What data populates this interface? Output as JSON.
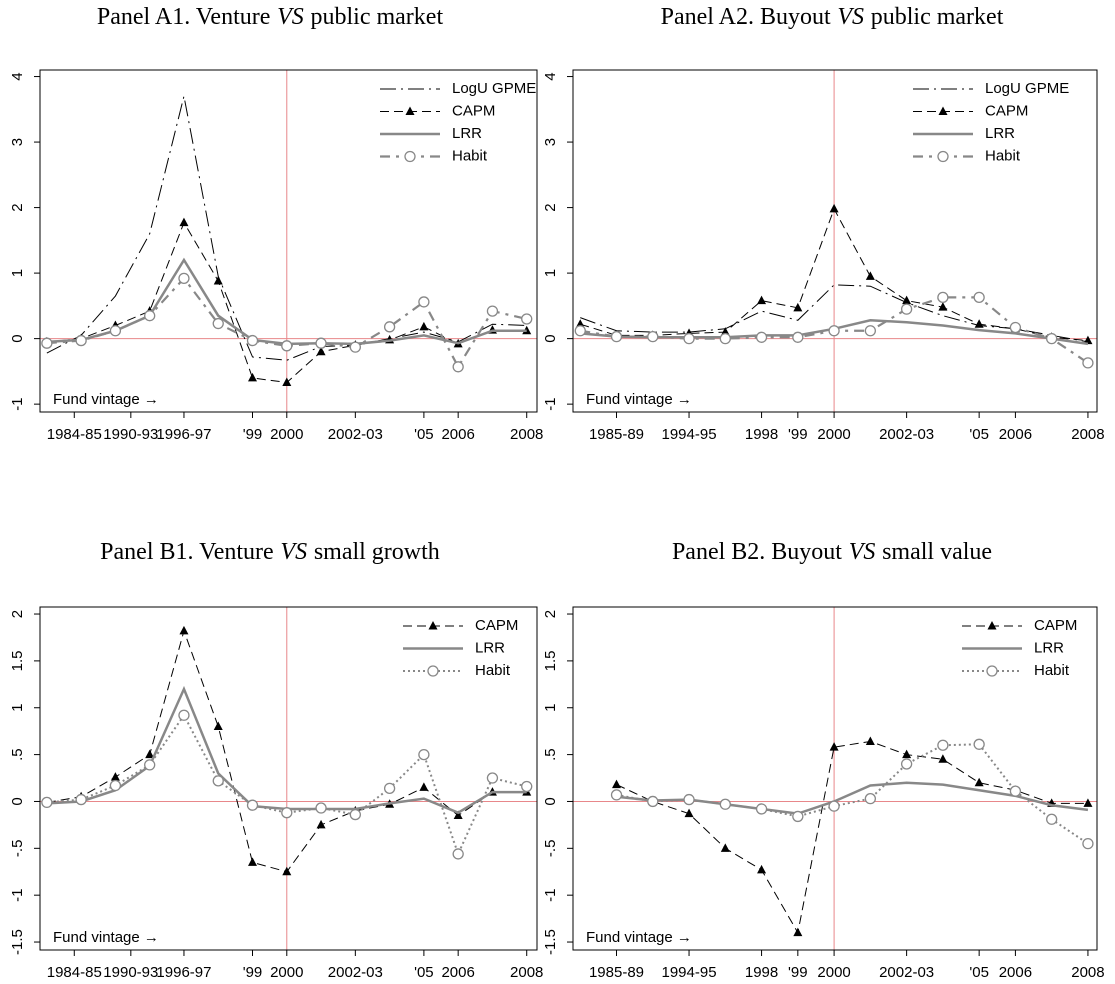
{
  "chart_data": [
    {
      "type": "line",
      "title": [
        "Panel A1. Venture",
        "VS",
        "public market"
      ],
      "annotation": "Fund vintage →",
      "x": [
        0,
        1,
        2,
        3,
        4,
        5,
        6,
        7,
        8,
        9,
        10,
        11,
        12,
        13,
        14
      ],
      "xlim": [
        -0.2,
        14.3
      ],
      "xticks": [
        {
          "value": 0.8,
          "label": "1984-85"
        },
        {
          "value": 2.45,
          "label": "1990-93"
        },
        {
          "value": 4,
          "label": "1996-97"
        },
        {
          "value": 6,
          "label": "'99"
        },
        {
          "value": 7,
          "label": "2000"
        },
        {
          "value": 9,
          "label": "2002-03"
        },
        {
          "value": 11,
          "label": "'05"
        },
        {
          "value": 12,
          "label": "2006"
        },
        {
          "value": 14,
          "label": "2008"
        }
      ],
      "ylim": [
        -1.12,
        4.1
      ],
      "yticks": [
        -1,
        0,
        1,
        2,
        3,
        4
      ],
      "vline": 7,
      "hline": 0,
      "legend": "upper right",
      "series": [
        {
          "name": "LogU GPME",
          "color": "#000000",
          "style": "dashdot",
          "marker": null,
          "values": [
            -0.22,
            0.05,
            0.65,
            1.6,
            3.7,
            0.95,
            -0.28,
            -0.33,
            -0.12,
            -0.1,
            0,
            0.1,
            -0.05,
            0.22,
            0.2
          ]
        },
        {
          "name": "CAPM",
          "color": "#000000",
          "style": "dash",
          "marker": "triangle",
          "values": [
            -0.05,
            0,
            0.2,
            0.42,
            1.77,
            0.88,
            -0.6,
            -0.67,
            -0.2,
            -0.1,
            -0.02,
            0.18,
            -0.08,
            0.13,
            0.12
          ]
        },
        {
          "name": "LRR",
          "color": "#888888",
          "style": "solid",
          "marker": null,
          "values": [
            -0.05,
            -0.02,
            0.12,
            0.35,
            1.2,
            0.35,
            -0.02,
            -0.08,
            -0.07,
            -0.08,
            -0.03,
            0.05,
            -0.07,
            0.12,
            0.12
          ]
        },
        {
          "name": "Habit",
          "color": "#888888",
          "style": "longdash",
          "marker": "circle",
          "values": [
            -0.07,
            -0.03,
            0.12,
            0.35,
            0.92,
            0.23,
            -0.03,
            -0.11,
            -0.07,
            -0.13,
            0.18,
            0.56,
            -0.43,
            0.42,
            0.3
          ]
        }
      ]
    },
    {
      "type": "line",
      "title": [
        "Panel A2. Buyout",
        "VS",
        "public market"
      ],
      "annotation": "Fund vintage →",
      "x": [
        0,
        1,
        2,
        3,
        4,
        5,
        6,
        7,
        8,
        9,
        10,
        11,
        12,
        13,
        14
      ],
      "xlim": [
        -0.2,
        14.25
      ],
      "xticks": [
        {
          "value": 1,
          "label": "1985-89"
        },
        {
          "value": 3,
          "label": "1994-95"
        },
        {
          "value": 5,
          "label": "1998"
        },
        {
          "value": 6,
          "label": "'99"
        },
        {
          "value": 7,
          "label": "2000"
        },
        {
          "value": 9,
          "label": "2002-03"
        },
        {
          "value": 11,
          "label": "'05"
        },
        {
          "value": 12,
          "label": "2006"
        },
        {
          "value": 14,
          "label": "2008"
        }
      ],
      "ylim": [
        -1.12,
        4.1
      ],
      "yticks": [
        -1,
        0,
        1,
        2,
        3,
        4
      ],
      "vline": 7,
      "hline": 0,
      "legend": "upper right",
      "series": [
        {
          "name": "LogU GPME",
          "color": "#000000",
          "style": "dashdot",
          "marker": null,
          "values": [
            0.32,
            0.12,
            0.1,
            0.1,
            0.15,
            0.42,
            0.28,
            0.82,
            0.8,
            0.55,
            0.35,
            0.2,
            0.15,
            0.05,
            -0.05
          ]
        },
        {
          "name": "CAPM",
          "color": "#000000",
          "style": "dash",
          "marker": "triangle",
          "values": [
            0.22,
            0.05,
            0.05,
            0.08,
            0.1,
            0.58,
            0.47,
            1.98,
            0.95,
            0.58,
            0.48,
            0.22,
            0.15,
            0.02,
            -0.03
          ]
        },
        {
          "name": "LRR",
          "color": "#888888",
          "style": "solid",
          "marker": null,
          "values": [
            0.08,
            0.03,
            0.02,
            0.02,
            0.02,
            0.05,
            0.05,
            0.15,
            0.28,
            0.25,
            0.2,
            0.13,
            0.08,
            0,
            -0.08
          ]
        },
        {
          "name": "Habit",
          "color": "#888888",
          "style": "longdash",
          "marker": "circle",
          "values": [
            0.12,
            0.03,
            0.03,
            0,
            0,
            0.02,
            0.02,
            0.12,
            0.12,
            0.45,
            0.63,
            0.63,
            0.17,
            0,
            -0.37
          ]
        }
      ]
    },
    {
      "type": "line",
      "title": [
        "Panel B1. Venture",
        "VS",
        "small growth"
      ],
      "annotation": "Fund vintage →",
      "x": [
        0,
        1,
        2,
        3,
        4,
        5,
        6,
        7,
        8,
        9,
        10,
        11,
        12,
        13,
        14
      ],
      "xlim": [
        -0.2,
        14.3
      ],
      "xticks": [
        {
          "value": 0.8,
          "label": "1984-85"
        },
        {
          "value": 2.45,
          "label": "1990-93"
        },
        {
          "value": 4,
          "label": "1996-97"
        },
        {
          "value": 6,
          "label": "'99"
        },
        {
          "value": 7,
          "label": "2000"
        },
        {
          "value": 9,
          "label": "2002-03"
        },
        {
          "value": 11,
          "label": "'05"
        },
        {
          "value": 12,
          "label": "2006"
        },
        {
          "value": 14,
          "label": "2008"
        }
      ],
      "ylim": [
        -1.585,
        2.075
      ],
      "yticks": [
        -1.5,
        -1,
        {
          "value": -0.5,
          "label": "-.5"
        },
        0,
        {
          "value": 0.5,
          "label": ".5"
        },
        1,
        1.5,
        2
      ],
      "vline": 7,
      "hline": 0,
      "legend": "upper right",
      "series": [
        {
          "name": "CAPM",
          "color": "#000000",
          "style": "dash",
          "marker": "triangle",
          "values": [
            -0.01,
            0.05,
            0.26,
            0.5,
            1.82,
            0.8,
            -0.65,
            -0.75,
            -0.25,
            -0.1,
            -0.03,
            0.15,
            -0.15,
            0.1,
            0.1
          ]
        },
        {
          "name": "LRR",
          "color": "#888888",
          "style": "solid",
          "marker": null,
          "values": [
            -0.02,
            0,
            0.12,
            0.38,
            1.2,
            0.3,
            -0.05,
            -0.08,
            -0.08,
            -0.08,
            -0.02,
            0.03,
            -0.12,
            0.1,
            0.1
          ]
        },
        {
          "name": "Habit",
          "color": "#888888",
          "style": "dot",
          "marker": "circle",
          "values": [
            -0.01,
            0.02,
            0.17,
            0.39,
            0.92,
            0.22,
            -0.04,
            -0.12,
            -0.07,
            -0.14,
            0.14,
            0.5,
            -0.56,
            0.25,
            0.16
          ]
        }
      ]
    },
    {
      "type": "line",
      "title": [
        "Panel B2. Buyout",
        "VS",
        "small value"
      ],
      "annotation": "Fund vintage →",
      "x": [
        1,
        2,
        3,
        4,
        5,
        6,
        7,
        8,
        9,
        10,
        11,
        12,
        13,
        14
      ],
      "xlim": [
        -0.2,
        14.25
      ],
      "xticks": [
        {
          "value": 1,
          "label": "1985-89"
        },
        {
          "value": 3,
          "label": "1994-95"
        },
        {
          "value": 5,
          "label": "1998"
        },
        {
          "value": 6,
          "label": "'99"
        },
        {
          "value": 7,
          "label": "2000"
        },
        {
          "value": 9,
          "label": "2002-03"
        },
        {
          "value": 11,
          "label": "'05"
        },
        {
          "value": 12,
          "label": "2006"
        },
        {
          "value": 14,
          "label": "2008"
        }
      ],
      "ylim": [
        -1.585,
        2.075
      ],
      "yticks": [
        -1.5,
        -1,
        {
          "value": -0.5,
          "label": "-.5"
        },
        0,
        {
          "value": 0.5,
          "label": ".5"
        },
        1,
        1.5,
        2
      ],
      "vline": 7,
      "hline": 0,
      "legend": "upper right",
      "series": [
        {
          "name": "CAPM",
          "color": "#000000",
          "style": "dash",
          "marker": "triangle",
          "values": [
            0.18,
            0,
            -0.13,
            -0.5,
            -0.73,
            -1.4,
            0.58,
            0.64,
            0.5,
            0.45,
            0.2,
            0.12,
            -0.02,
            -0.02
          ]
        },
        {
          "name": "LRR",
          "color": "#888888",
          "style": "solid",
          "marker": null,
          "values": [
            0.05,
            0.01,
            0.02,
            -0.03,
            -0.08,
            -0.13,
            0,
            0.17,
            0.2,
            0.18,
            0.12,
            0.06,
            -0.04,
            -0.09
          ]
        },
        {
          "name": "Habit",
          "color": "#888888",
          "style": "dot",
          "marker": "circle",
          "values": [
            0.07,
            0,
            0.02,
            -0.03,
            -0.08,
            -0.16,
            -0.05,
            0.03,
            0.4,
            0.6,
            0.61,
            0.11,
            -0.19,
            -0.45
          ]
        }
      ]
    }
  ]
}
